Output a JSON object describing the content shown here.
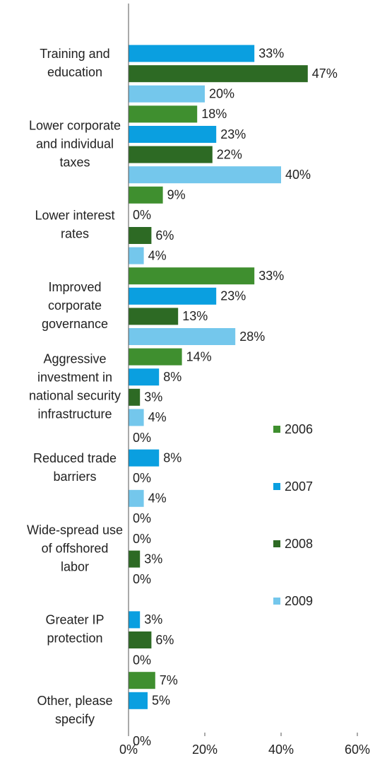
{
  "chart_data": {
    "type": "bar",
    "orientation": "horizontal",
    "categories": [
      "Training and education",
      "Lower corporate and individual taxes",
      "Lower interest rates",
      "Improved corporate governance",
      "Aggressive investment in national security infrastructure",
      "Reduced trade barriers",
      "Wide-spread use of offshored labor",
      "Greater IP protection",
      "Other, please specify"
    ],
    "category_lines": [
      [
        "Training and",
        "education"
      ],
      [
        "Lower corporate",
        "and individual",
        "taxes"
      ],
      [
        "Lower interest",
        "rates"
      ],
      [
        "Improved",
        "corporate",
        "governance"
      ],
      [
        "Aggressive",
        "investment in",
        "national security",
        "infrastructure"
      ],
      [
        "Reduced trade",
        "barriers"
      ],
      [
        "Wide-spread use",
        "of offshored",
        "labor"
      ],
      [
        "Greater IP",
        "protection"
      ],
      [
        "Other, please",
        "specify"
      ]
    ],
    "series": [
      {
        "name": "2006",
        "color": "#3f8f2f",
        "values": [
          null,
          18,
          9,
          33,
          14,
          0,
          0,
          null,
          7
        ]
      },
      {
        "name": "2007",
        "color": "#0a9fe0",
        "values": [
          33,
          23,
          0,
          23,
          8,
          8,
          0,
          3,
          5
        ]
      },
      {
        "name": "2008",
        "color": "#2d6a24",
        "values": [
          47,
          22,
          6,
          13,
          3,
          0,
          3,
          6,
          null
        ]
      },
      {
        "name": "2009",
        "color": "#74c7ec",
        "values": [
          20,
          40,
          4,
          28,
          4,
          4,
          0,
          0,
          0
        ]
      }
    ],
    "value_suffix": "%",
    "xlim": [
      0,
      60
    ],
    "xticks": [
      0,
      20,
      40,
      60
    ],
    "xtick_labels": [
      "0%",
      "20%",
      "40%",
      "60%"
    ],
    "grid": false,
    "legend_position": "right"
  }
}
